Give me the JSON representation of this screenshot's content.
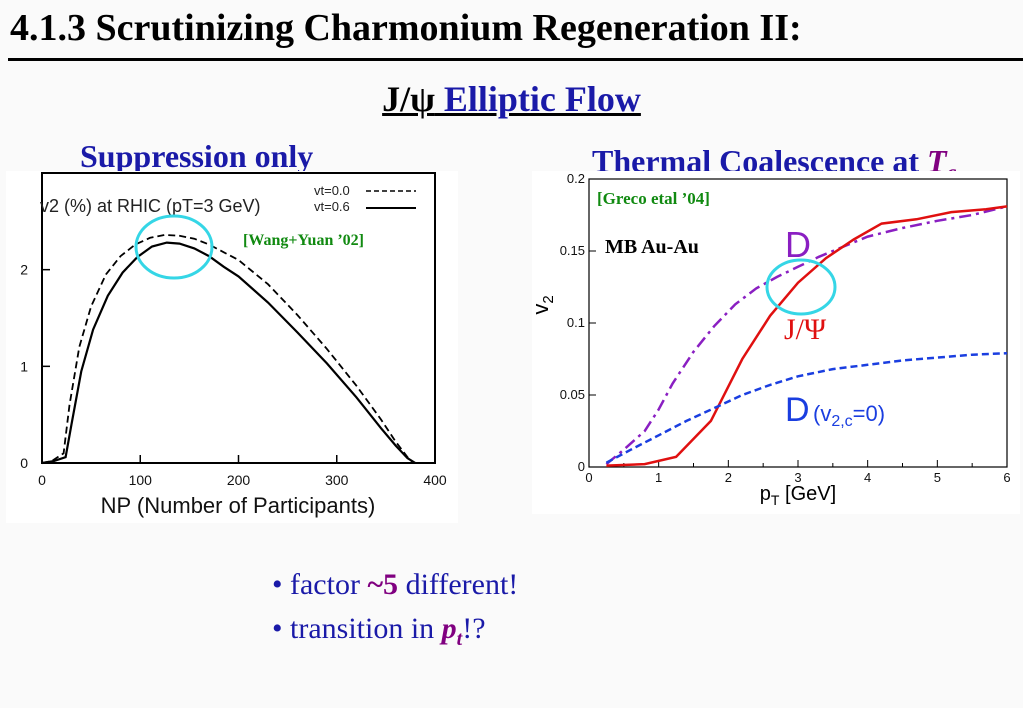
{
  "slide": {
    "title": "4.1.3  Scrutinizing Charmonium Regeneration II:",
    "subtitle_prefix": "J/ψ",
    "subtitle_main": " Elliptic Flow"
  },
  "left_panel": {
    "caption": "Suppression only"
  },
  "right_panel": {
    "caption_prefix": "Thermal Coalescence at ",
    "caption_T": "T",
    "caption_sub": "c"
  },
  "bullets": {
    "b1_a": "• factor ",
    "b1_b": "~5",
    "b1_c": " different!",
    "b2_a": "• transition in ",
    "b2_p": "p",
    "b2_t": "t",
    "b2_c": "!?"
  },
  "chart_data": [
    {
      "type": "line",
      "annotation_title": "v2 (%) at RHIC (pT=3 GeV)",
      "reference": "[Wang+Yuan ’02]",
      "xlabel": "NP (Number of Participants)",
      "xlim": [
        0,
        400
      ],
      "ylim": [
        0,
        3
      ],
      "xticks": [
        "0",
        "100",
        "200",
        "300",
        "400"
      ],
      "yticks": [
        "0",
        "1",
        "2"
      ],
      "series": [
        {
          "name": "vt=0.0",
          "style": "dashed",
          "x": [
            0,
            10,
            22,
            28,
            38,
            50,
            65,
            80,
            95,
            110,
            125,
            140,
            155,
            170,
            185,
            200,
            230,
            260,
            290,
            320,
            345,
            360,
            372,
            378
          ],
          "y": [
            0,
            0.02,
            0.1,
            0.6,
            1.2,
            1.62,
            1.95,
            2.14,
            2.26,
            2.33,
            2.36,
            2.35,
            2.32,
            2.26,
            2.18,
            2.1,
            1.85,
            1.53,
            1.18,
            0.8,
            0.45,
            0.22,
            0.06,
            0
          ]
        },
        {
          "name": "vt=0.6",
          "style": "solid",
          "x": [
            0,
            12,
            24,
            30,
            40,
            52,
            67,
            82,
            97,
            112,
            127,
            140,
            155,
            170,
            185,
            200,
            230,
            260,
            290,
            320,
            345,
            360,
            372,
            380
          ],
          "y": [
            0,
            0.02,
            0.06,
            0.4,
            0.95,
            1.38,
            1.73,
            1.97,
            2.13,
            2.24,
            2.28,
            2.27,
            2.22,
            2.14,
            2.03,
            1.93,
            1.66,
            1.35,
            1.03,
            0.68,
            0.36,
            0.18,
            0.05,
            0
          ]
        }
      ]
    },
    {
      "type": "line",
      "reference": "[Greco etal ’04]",
      "condition": "MB Au-Au",
      "xlabel": "pT [GeV]",
      "ylabel": "v2",
      "xlim": [
        0,
        6
      ],
      "ylim": [
        0,
        0.2
      ],
      "xticks": [
        "0",
        "1",
        "2",
        "3",
        "4",
        "5",
        "6"
      ],
      "yticks": [
        "0",
        "0.05",
        "0.1",
        "0.15",
        "0.2"
      ],
      "series": [
        {
          "name": "D",
          "color": "#8a1fc2",
          "style": "dashdot",
          "x": [
            0.25,
            0.5,
            0.8,
            1.0,
            1.2,
            1.5,
            1.8,
            2.1,
            2.4,
            2.7,
            3.0,
            3.3,
            3.6,
            4.0,
            4.5,
            5.0,
            5.5,
            6.0
          ],
          "y": [
            0.002,
            0.012,
            0.025,
            0.04,
            0.058,
            0.08,
            0.098,
            0.113,
            0.124,
            0.132,
            0.139,
            0.146,
            0.152,
            0.16,
            0.166,
            0.171,
            0.175,
            0.181
          ]
        },
        {
          "name": "J/Ψ",
          "color": "#e01010",
          "style": "solid",
          "x": [
            0.25,
            0.8,
            1.25,
            1.75,
            2.2,
            2.6,
            3.0,
            3.4,
            3.8,
            4.2,
            4.7,
            5.2,
            5.7,
            6.0
          ],
          "y": [
            0.001,
            0.002,
            0.007,
            0.032,
            0.075,
            0.105,
            0.128,
            0.145,
            0.158,
            0.169,
            0.172,
            0.177,
            0.179,
            0.181
          ]
        },
        {
          "name": "D(v2,c=0)",
          "color": "#1a3ee0",
          "style": "dashed",
          "x": [
            0.25,
            0.6,
            1.0,
            1.4,
            1.8,
            2.2,
            2.6,
            3.0,
            3.5,
            4.0,
            4.5,
            5.0,
            5.5,
            6.0
          ],
          "y": [
            0.003,
            0.012,
            0.022,
            0.032,
            0.041,
            0.05,
            0.057,
            0.063,
            0.068,
            0.071,
            0.074,
            0.076,
            0.078,
            0.079
          ]
        }
      ]
    }
  ]
}
